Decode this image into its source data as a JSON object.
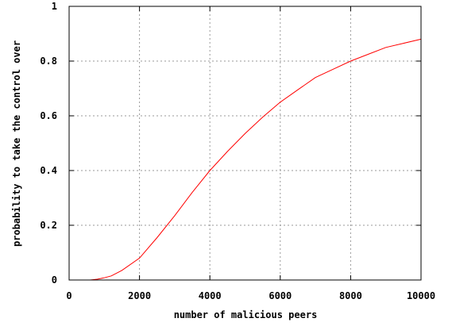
{
  "chart_data": {
    "type": "line",
    "title": "",
    "xlabel": "number of malicious peers",
    "ylabel": "probability to take the control over",
    "xlim": [
      0,
      10000
    ],
    "ylim": [
      0,
      1
    ],
    "xticks": [
      0,
      2000,
      4000,
      6000,
      8000,
      10000
    ],
    "xtick_labels": [
      "0",
      "2000",
      "4000",
      "6000",
      "8000",
      "10000"
    ],
    "yticks": [
      0,
      0.2,
      0.4,
      0.6,
      0.8,
      1
    ],
    "ytick_labels": [
      "0",
      "0.2",
      "0.4",
      "0.6",
      "0.8",
      "1"
    ],
    "grid": true,
    "series": [
      {
        "color": "#ff0000",
        "x": [
          600,
          800,
          1000,
          1200,
          1500,
          2000,
          2500,
          3000,
          3500,
          4000,
          4500,
          5000,
          5500,
          6000,
          6500,
          7000,
          7500,
          8000,
          8500,
          9000,
          9500,
          10000
        ],
        "y": [
          0.0,
          0.003,
          0.008,
          0.015,
          0.035,
          0.08,
          0.155,
          0.235,
          0.32,
          0.4,
          0.47,
          0.535,
          0.595,
          0.65,
          0.695,
          0.74,
          0.77,
          0.8,
          0.825,
          0.85,
          0.865,
          0.88
        ]
      }
    ]
  }
}
